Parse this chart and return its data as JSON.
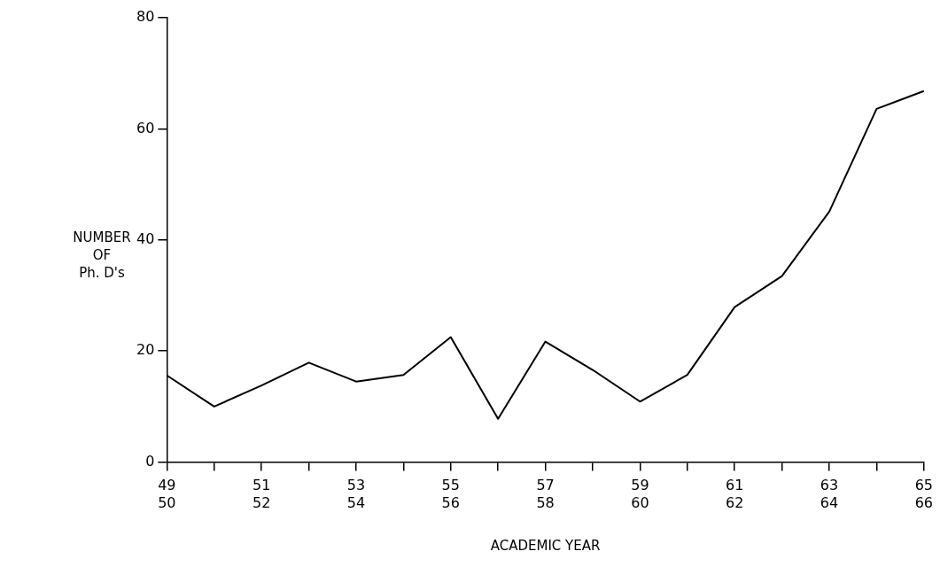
{
  "chart_data": {
    "type": "line",
    "xlabel": "ACADEMIC YEAR",
    "ylabel": "NUMBER\nOF\nPh. D's",
    "categories": [
      "49\n50",
      null,
      "51\n52",
      null,
      "53\n54",
      null,
      "55\n56",
      null,
      "57\n58",
      null,
      "59\n60",
      null,
      "61\n62",
      null,
      "63\n64",
      null,
      "65\n66"
    ],
    "series": [
      {
        "color": "#000000",
        "values": [
          15.6,
          10.0,
          13.8,
          17.9,
          14.5,
          15.7,
          22.5,
          7.8,
          21.7,
          16.6,
          10.9,
          15.7,
          27.9,
          33.5,
          45.1,
          63.6,
          66.8
        ]
      }
    ],
    "ylim": [
      0,
      80
    ],
    "yticks": [
      0,
      20,
      40,
      60,
      80
    ],
    "grid": false,
    "legend": false,
    "marker": "none",
    "line_style": "solid"
  }
}
